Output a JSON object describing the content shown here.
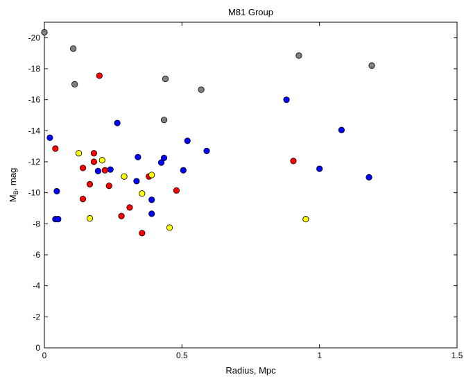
{
  "chart_data": {
    "type": "scatter",
    "title": "M81 Group",
    "xlabel": "Radius, Mpc",
    "ylabel_main": "M",
    "ylabel_sub": "B",
    "ylabel_rest": ", mag",
    "xlim": [
      0,
      1.5
    ],
    "ylim": [
      0,
      -21
    ],
    "y_reversed": true,
    "x_ticks": [
      0,
      0.5,
      1,
      1.5
    ],
    "x_tick_labels": [
      "0",
      "0.5",
      "1",
      "1.5"
    ],
    "y_ticks": [
      0,
      -2,
      -4,
      -6,
      -8,
      -10,
      -12,
      -14,
      -16,
      -18,
      -20
    ],
    "y_tick_labels": [
      "0",
      "-2",
      "-4",
      "-6",
      "-8",
      "-10",
      "-12",
      "-14",
      "-16",
      "-18",
      "-20"
    ],
    "grid": false,
    "legend": "none",
    "series": [
      {
        "color": "#808080",
        "points": [
          [
            0.0,
            -20.35
          ],
          [
            0.105,
            -19.3
          ],
          [
            0.11,
            -17.0
          ],
          [
            0.44,
            -17.35
          ],
          [
            0.435,
            -14.7
          ],
          [
            0.57,
            -16.65
          ],
          [
            0.925,
            -18.85
          ],
          [
            1.19,
            -18.2
          ]
        ]
      },
      {
        "color": "#0000ff",
        "points": [
          [
            0.02,
            -13.55
          ],
          [
            0.04,
            -8.3
          ],
          [
            0.05,
            -8.3
          ],
          [
            0.045,
            -10.1
          ],
          [
            0.195,
            -11.4
          ],
          [
            0.24,
            -11.5
          ],
          [
            0.265,
            -14.5
          ],
          [
            0.335,
            -10.75
          ],
          [
            0.34,
            -12.3
          ],
          [
            0.39,
            -8.65
          ],
          [
            0.39,
            -9.55
          ],
          [
            0.425,
            -11.95
          ],
          [
            0.435,
            -12.25
          ],
          [
            0.505,
            -11.45
          ],
          [
            0.52,
            -13.35
          ],
          [
            0.59,
            -12.7
          ],
          [
            0.88,
            -16.0
          ],
          [
            1.0,
            -11.55
          ],
          [
            1.08,
            -14.05
          ],
          [
            1.18,
            -11.0
          ]
        ]
      },
      {
        "color": "#ff0000",
        "points": [
          [
            0.04,
            -12.85
          ],
          [
            0.14,
            -11.6
          ],
          [
            0.14,
            -9.6
          ],
          [
            0.165,
            -10.55
          ],
          [
            0.18,
            -12.0
          ],
          [
            0.18,
            -12.55
          ],
          [
            0.2,
            -17.55
          ],
          [
            0.22,
            -11.45
          ],
          [
            0.235,
            -10.45
          ],
          [
            0.28,
            -8.5
          ],
          [
            0.31,
            -9.05
          ],
          [
            0.355,
            -7.4
          ],
          [
            0.38,
            -11.05
          ],
          [
            0.48,
            -10.15
          ],
          [
            0.905,
            -12.05
          ]
        ]
      },
      {
        "color": "#ffff00",
        "points": [
          [
            0.125,
            -12.55
          ],
          [
            0.165,
            -8.35
          ],
          [
            0.21,
            -12.1
          ],
          [
            0.29,
            -11.05
          ],
          [
            0.355,
            -9.95
          ],
          [
            0.39,
            -11.15
          ],
          [
            0.455,
            -7.75
          ],
          [
            0.95,
            -8.3
          ]
        ]
      }
    ]
  }
}
